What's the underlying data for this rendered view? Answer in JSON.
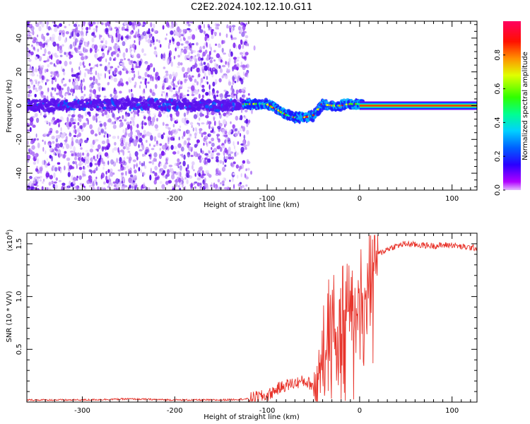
{
  "title": "C2E2.2024.102.12.10.G11",
  "colors": {
    "trace": "#e8332a",
    "axis": "#000000",
    "spectrogram_noise": "#7a1cf0",
    "colorbar": [
      "#c800ff",
      "#3a00ff",
      "#0050ff",
      "#00c8ff",
      "#00ff80",
      "#40ff00",
      "#ffff00",
      "#ff8000",
      "#ff0000",
      "#ff0060"
    ]
  },
  "chart_data": [
    {
      "type": "heatmap",
      "xlabel": "Height of straight line (km)",
      "ylabel": "Frequency (Hz)",
      "xlim": [
        -360,
        127
      ],
      "ylim": [
        -50,
        50
      ],
      "xticks": [
        -300,
        -200,
        -100,
        0,
        100
      ],
      "yticks": [
        -40,
        -20,
        0,
        20,
        40
      ],
      "colorbar": {
        "label": "Normalized spectral amplitude",
        "range": [
          0,
          1
        ],
        "ticks": [
          "0.0",
          "0.2",
          "0.4",
          "0.6",
          "0.8"
        ]
      },
      "noise_extent_x": [
        -360,
        -120
      ],
      "ridge": {
        "x": [
          -360,
          -300,
          -250,
          -200,
          -150,
          -120,
          -100,
          -90,
          -80,
          -70,
          -60,
          -50,
          -45,
          -40,
          -30,
          -20,
          -10,
          0,
          5,
          127
        ],
        "y": [
          0,
          0.5,
          1,
          0.5,
          0,
          1,
          1,
          -2,
          -5,
          -7,
          -7,
          -6,
          -3,
          1,
          0,
          0,
          1,
          1,
          0,
          0
        ]
      },
      "strong_line": {
        "x_start": 0,
        "x_end": 127,
        "y": 0
      }
    },
    {
      "type": "line",
      "xlabel": "Height of straight line (km)",
      "ylabel": "SNR (10 * V/V)",
      "scale_note": "(x10",
      "scale_exp": "4",
      "scale_close": ")",
      "xlim": [
        -360,
        127
      ],
      "ylim": [
        0,
        1.6
      ],
      "xticks": [
        -300,
        -200,
        -100,
        0,
        100
      ],
      "yticks": [
        "0.5",
        "1.0",
        "1.5"
      ],
      "series": [
        {
          "x": [
            -360,
            -300,
            -250,
            -200,
            -150,
            -120,
            -110,
            -100,
            -90,
            -80,
            -70,
            -60,
            -50,
            -45,
            -40,
            -35,
            -30,
            -25,
            -20,
            -15,
            -10,
            -5,
            0,
            10,
            20,
            30,
            40,
            50,
            60,
            80,
            100,
            110,
            127
          ],
          "y": [
            0.02,
            0.02,
            0.03,
            0.02,
            0.02,
            0.03,
            0.05,
            0.06,
            0.12,
            0.16,
            0.18,
            0.2,
            0.16,
            0.25,
            0.5,
            0.85,
            1.0,
            0.7,
            0.9,
            1.05,
            0.95,
            1.1,
            1.2,
            1.3,
            1.4,
            1.45,
            1.48,
            1.5,
            1.49,
            1.48,
            1.49,
            1.47,
            1.46
          ]
        }
      ]
    }
  ]
}
